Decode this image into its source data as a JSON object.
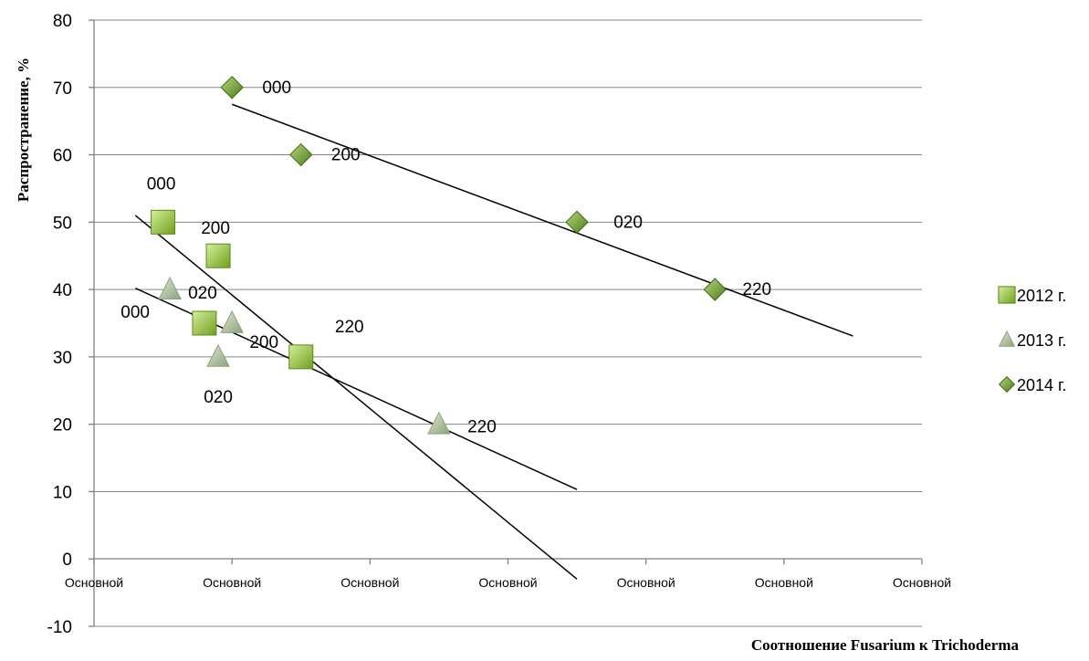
{
  "chart_data": {
    "type": "scatter",
    "title": "",
    "xlabel": "Соотношение Fusarium к Trichoderma",
    "ylabel": "Распространение, %",
    "ylim": [
      -10,
      80
    ],
    "yticks": [
      -10,
      0,
      10,
      20,
      30,
      40,
      50,
      60,
      70,
      80
    ],
    "xlim": [
      0,
      6
    ],
    "xticks": [
      0,
      1,
      2,
      3,
      4,
      5,
      6
    ],
    "xtick_labels": [
      "Основной",
      "Основной",
      "Основной",
      "Основной",
      "Основной",
      "Основной",
      "Основной"
    ],
    "grid": "horizontal",
    "legend_position": "right",
    "series": [
      {
        "name": "2012 г.",
        "marker": "square",
        "color": "#8cc63f",
        "points": [
          {
            "x": 0.5,
            "y": 50,
            "label": "000"
          },
          {
            "x": 0.9,
            "y": 45,
            "label": "200"
          },
          {
            "x": 0.8,
            "y": 35,
            "label": "020"
          },
          {
            "x": 1.5,
            "y": 30,
            "label": "220"
          }
        ],
        "trendline": {
          "x": [
            0.3,
            3.5
          ],
          "y": [
            51,
            -3
          ]
        }
      },
      {
        "name": "2013 г.",
        "marker": "triangle",
        "color": "#a9bf9a",
        "points": [
          {
            "x": 0.55,
            "y": 40,
            "label": "000"
          },
          {
            "x": 1.0,
            "y": 35,
            "label": "200"
          },
          {
            "x": 0.9,
            "y": 30,
            "label": "020"
          },
          {
            "x": 2.5,
            "y": 20,
            "label": "220"
          }
        ],
        "trendline": {
          "x": [
            0.3,
            3.5
          ],
          "y": [
            40.2,
            10.3
          ]
        }
      },
      {
        "name": "2014 г.",
        "marker": "diamond",
        "color": "#6f9a2c",
        "points": [
          {
            "x": 1.0,
            "y": 70,
            "label": "000"
          },
          {
            "x": 1.5,
            "y": 60,
            "label": "200"
          },
          {
            "x": 3.5,
            "y": 50,
            "label": "020"
          },
          {
            "x": 4.5,
            "y": 40,
            "label": "220"
          }
        ],
        "trendline": {
          "x": [
            1.0,
            5.5
          ],
          "y": [
            67.5,
            33.1
          ]
        }
      }
    ]
  }
}
